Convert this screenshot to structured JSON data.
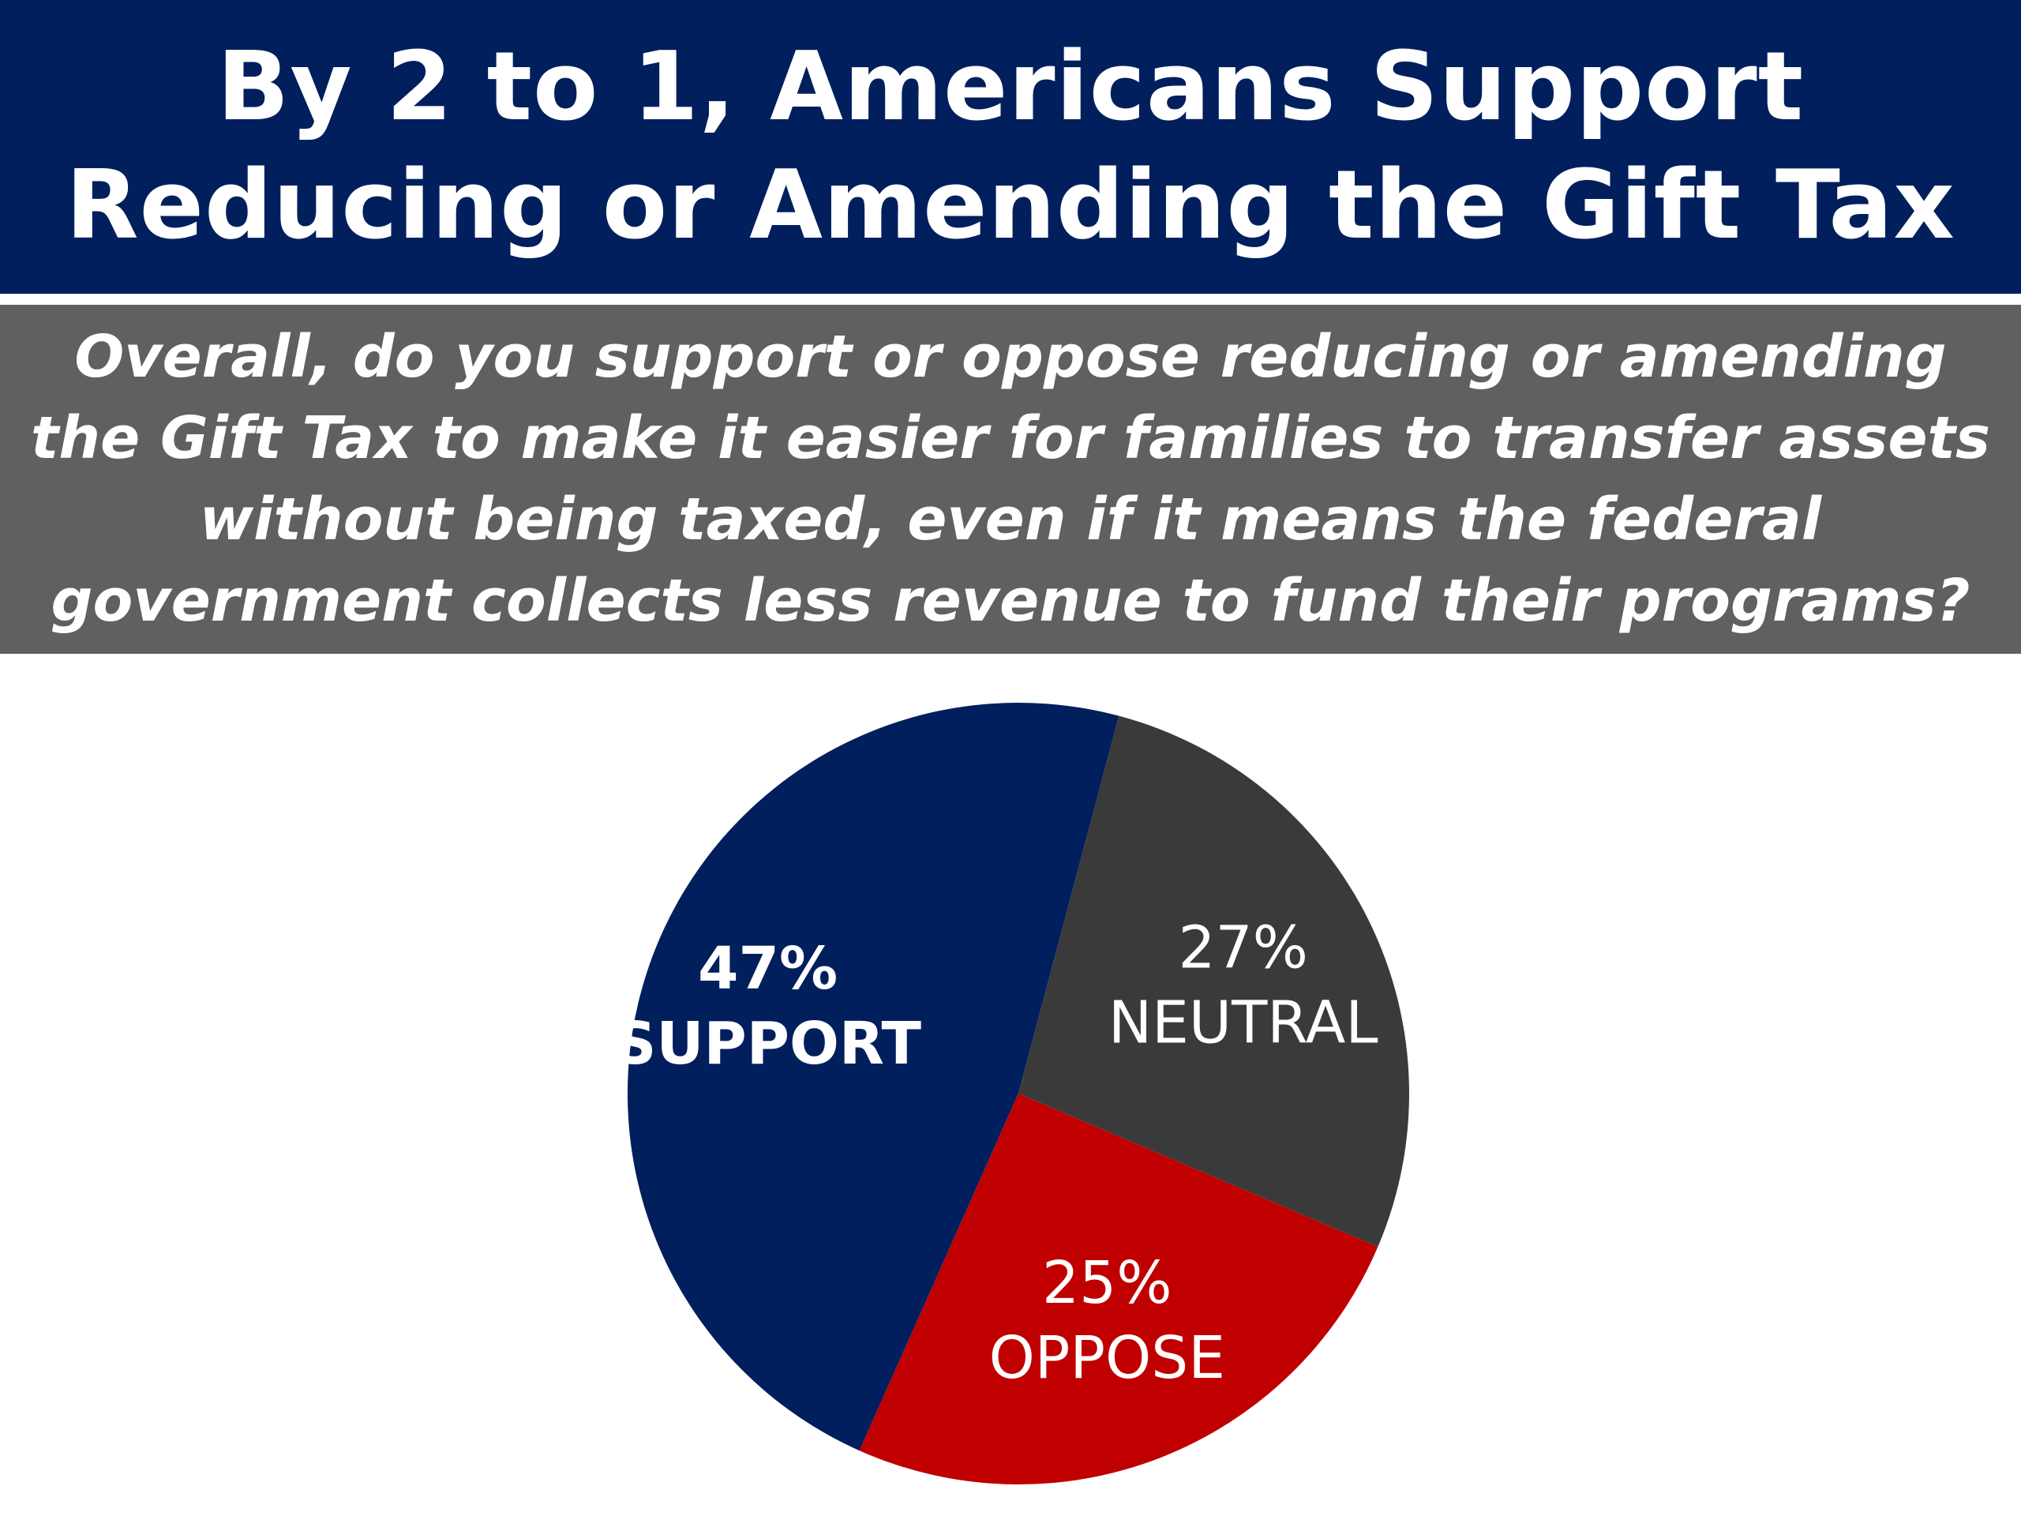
{
  "title": {
    "line1": "By 2 to 1, Americans Support",
    "line2": "Reducing or Amending the Gift Tax"
  },
  "question": {
    "line1": "Overall, do you support or oppose reducing or amending",
    "line2": "the Gift Tax to make it easier for families to transfer assets",
    "line3": "without being taxed, even if it means the federal",
    "line4": "government collects less revenue to fund their programs?"
  },
  "colors": {
    "title_background": "#001f5c",
    "question_background": "#606060",
    "support": "#001f5c",
    "neutral": "#3b3a3b",
    "oppose": "#c00000"
  },
  "chart_data": {
    "type": "pie",
    "title": "",
    "legend": "none",
    "slices": [
      {
        "key": "support",
        "pct_label": "47%",
        "category_label": "SUPPORT",
        "value": 47,
        "color": "#001f5c",
        "label_bold": true
      },
      {
        "key": "neutral",
        "pct_label": "27%",
        "category_label": "NEUTRAL",
        "value": 27,
        "color": "#3b3a3b",
        "label_bold": false
      },
      {
        "key": "oppose",
        "pct_label": "25%",
        "category_label": "OPPOSE",
        "value": 25,
        "color": "#c00000",
        "label_bold": false
      }
    ]
  }
}
